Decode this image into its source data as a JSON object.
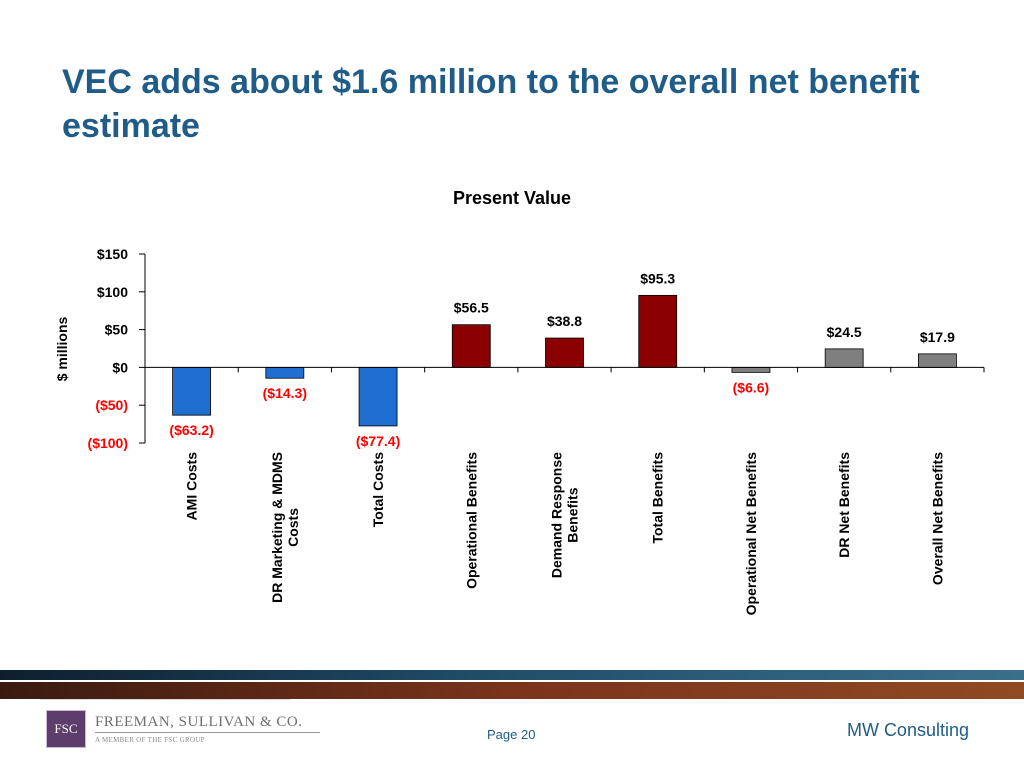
{
  "slide": {
    "title": "VEC adds about $1.6 million to the overall net benefit estimate"
  },
  "chart_data": {
    "type": "bar",
    "title": "Present Value",
    "ylabel": "$ millions",
    "xlabel": "",
    "ylim": [
      -100,
      150
    ],
    "yticks": [
      150,
      100,
      50,
      0,
      -50,
      -100
    ],
    "ytick_labels": [
      "$150",
      "$100",
      "$50",
      "$0",
      "($50)",
      "($100)"
    ],
    "categories": [
      "AMI Costs",
      "DR Marketing & MDMS Costs",
      "Total Costs",
      "Operational Benefits",
      "Demand Response Benefits",
      "Total Benefits",
      "Operational Net Benefits",
      "DR Net Benefits",
      "Overall Net Benefits"
    ],
    "category_lines": [
      [
        "AMI Costs"
      ],
      [
        "DR Marketing & MDMS",
        "Costs"
      ],
      [
        "Total Costs"
      ],
      [
        "Operational Benefits"
      ],
      [
        "Demand Response",
        "Benefits"
      ],
      [
        "Total Benefits"
      ],
      [
        "Operational Net Benefits"
      ],
      [
        "DR Net Benefits"
      ],
      [
        "Overall Net Benefits"
      ]
    ],
    "values": [
      -63.2,
      -14.3,
      -77.4,
      56.5,
      38.8,
      95.3,
      -6.6,
      24.5,
      17.9
    ],
    "data_labels": [
      "($63.2)",
      "($14.3)",
      "($77.4)",
      "$56.5",
      "$38.8",
      "$95.3",
      "($6.6)",
      "$24.5",
      "$17.9"
    ],
    "colors": [
      "#1f6fd1",
      "#1f6fd1",
      "#1f6fd1",
      "#8b0000",
      "#8b0000",
      "#8b0000",
      "#7f7f7f",
      "#7f7f7f",
      "#7f7f7f"
    ],
    "negative_label_color": "#ff0000",
    "positive_label_color": "#000000",
    "grid": false,
    "legend": "none"
  },
  "footer": {
    "logo_mark": "FSC",
    "logo_name": "FREEMAN, SULLIVAN & CO.",
    "logo_tagline": "A MEMBER OF THE FSC GROUP",
    "page": "Page 20",
    "company": "MW Consulting"
  }
}
